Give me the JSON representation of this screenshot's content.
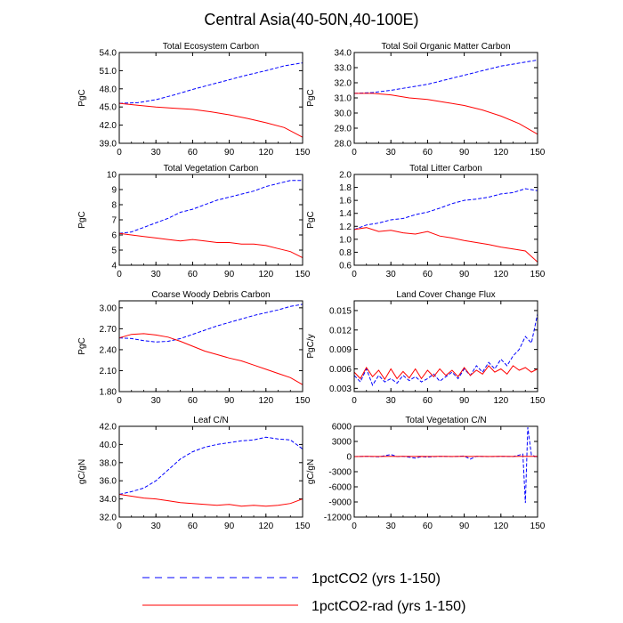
{
  "figure": {
    "title": "Central Asia(40-50N,40-100E)"
  },
  "legend": {
    "placement": "bottom",
    "entries": [
      {
        "label": "1pctCO2 (yrs 1-150)",
        "color": "#0000ff",
        "style": "dashed"
      },
      {
        "label": "1pctCO2-rad (yrs 1-150)",
        "color": "#ff0000",
        "style": "solid"
      }
    ]
  },
  "chart_data": [
    {
      "type": "line",
      "title": "Total Ecosystem Carbon",
      "ylabel": "PgC",
      "xlim": [
        0,
        150
      ],
      "ylim": [
        39,
        54
      ],
      "xticks": [
        0,
        30,
        60,
        90,
        120,
        150
      ],
      "xtick_labels": [
        "0",
        "30",
        "60",
        "90",
        "120",
        "150"
      ],
      "yticks": [
        39,
        42,
        45,
        48,
        51,
        54
      ],
      "ytick_labels": [
        "39.0",
        "42.0",
        "45.0",
        "48.0",
        "51.0",
        "54.0"
      ],
      "x": [
        0,
        15,
        30,
        45,
        60,
        75,
        90,
        105,
        120,
        135,
        150
      ],
      "series": [
        {
          "name": "1pctCO2 (yrs 1-150)",
          "color": "#0000ff",
          "style": "dashed",
          "values": [
            45.6,
            45.7,
            46.2,
            47.0,
            47.9,
            48.7,
            49.5,
            50.3,
            51.0,
            51.8,
            52.3
          ]
        },
        {
          "name": "1pctCO2-rad (yrs 1-150)",
          "color": "#ff0000",
          "style": "solid",
          "values": [
            45.6,
            45.3,
            45.0,
            44.8,
            44.6,
            44.2,
            43.7,
            43.1,
            42.4,
            41.6,
            40.0
          ]
        }
      ]
    },
    {
      "type": "line",
      "title": "Total Soil Organic Matter Carbon",
      "ylabel": "PgC",
      "xlim": [
        0,
        150
      ],
      "ylim": [
        28,
        34
      ],
      "xticks": [
        0,
        30,
        60,
        90,
        120,
        150
      ],
      "xtick_labels": [
        "0",
        "30",
        "60",
        "90",
        "120",
        "150"
      ],
      "yticks": [
        28,
        29,
        30,
        31,
        32,
        33,
        34
      ],
      "ytick_labels": [
        "28.0",
        "29.0",
        "30.0",
        "31.0",
        "32.0",
        "33.0",
        "34.0"
      ],
      "x": [
        0,
        15,
        30,
        45,
        60,
        75,
        90,
        105,
        120,
        135,
        150
      ],
      "series": [
        {
          "name": "1pctCO2 (yrs 1-150)",
          "color": "#0000ff",
          "style": "dashed",
          "values": [
            31.3,
            31.35,
            31.5,
            31.7,
            31.9,
            32.2,
            32.5,
            32.8,
            33.1,
            33.3,
            33.5
          ]
        },
        {
          "name": "1pctCO2-rad (yrs 1-150)",
          "color": "#ff0000",
          "style": "solid",
          "values": [
            31.3,
            31.3,
            31.2,
            31.0,
            30.9,
            30.7,
            30.5,
            30.2,
            29.8,
            29.3,
            28.6
          ]
        }
      ]
    },
    {
      "type": "line",
      "title": "Total Vegetation Carbon",
      "ylabel": "PgC",
      "xlim": [
        0,
        150
      ],
      "ylim": [
        4,
        10
      ],
      "xticks": [
        0,
        30,
        60,
        90,
        120,
        150
      ],
      "xtick_labels": [
        "0",
        "30",
        "60",
        "90",
        "120",
        "150"
      ],
      "yticks": [
        4,
        5,
        6,
        7,
        8,
        9,
        10
      ],
      "ytick_labels": [
        "4",
        "5",
        "6",
        "7",
        "8",
        "9",
        "10"
      ],
      "x": [
        0,
        10,
        20,
        30,
        40,
        50,
        60,
        70,
        80,
        90,
        100,
        110,
        120,
        130,
        140,
        150
      ],
      "series": [
        {
          "name": "1pctCO2 (yrs 1-150)",
          "color": "#0000ff",
          "style": "dashed",
          "values": [
            6.1,
            6.2,
            6.5,
            6.8,
            7.1,
            7.5,
            7.7,
            8.0,
            8.3,
            8.5,
            8.7,
            8.9,
            9.2,
            9.4,
            9.6,
            9.6
          ]
        },
        {
          "name": "1pctCO2-rad (yrs 1-150)",
          "color": "#ff0000",
          "style": "solid",
          "values": [
            6.1,
            6.0,
            5.9,
            5.8,
            5.7,
            5.6,
            5.7,
            5.6,
            5.5,
            5.5,
            5.4,
            5.4,
            5.3,
            5.1,
            4.9,
            4.5
          ]
        }
      ]
    },
    {
      "type": "line",
      "title": "Total Litter Carbon",
      "ylabel": "PgC",
      "xlim": [
        0,
        150
      ],
      "ylim": [
        0.6,
        2.0
      ],
      "xticks": [
        0,
        30,
        60,
        90,
        120,
        150
      ],
      "xtick_labels": [
        "0",
        "30",
        "60",
        "90",
        "120",
        "150"
      ],
      "yticks": [
        0.6,
        0.8,
        1.0,
        1.2,
        1.4,
        1.6,
        1.8,
        2.0
      ],
      "ytick_labels": [
        "0.6",
        "0.8",
        "1.0",
        "1.2",
        "1.4",
        "1.6",
        "1.8",
        "2.0"
      ],
      "x": [
        0,
        10,
        20,
        30,
        40,
        50,
        60,
        70,
        80,
        90,
        100,
        110,
        120,
        130,
        140,
        150
      ],
      "series": [
        {
          "name": "1pctCO2 (yrs 1-150)",
          "color": "#0000ff",
          "style": "dashed",
          "values": [
            1.15,
            1.22,
            1.25,
            1.3,
            1.32,
            1.38,
            1.42,
            1.48,
            1.55,
            1.6,
            1.62,
            1.65,
            1.7,
            1.72,
            1.78,
            1.75
          ]
        },
        {
          "name": "1pctCO2-rad (yrs 1-150)",
          "color": "#ff0000",
          "style": "solid",
          "values": [
            1.15,
            1.18,
            1.12,
            1.14,
            1.1,
            1.08,
            1.12,
            1.05,
            1.02,
            0.98,
            0.95,
            0.92,
            0.88,
            0.85,
            0.82,
            0.65
          ]
        }
      ]
    },
    {
      "type": "line",
      "title": "Coarse Woody Debris Carbon",
      "ylabel": "PgC",
      "xlim": [
        0,
        150
      ],
      "ylim": [
        1.8,
        3.1
      ],
      "xticks": [
        0,
        30,
        60,
        90,
        120,
        150
      ],
      "xtick_labels": [
        "0",
        "30",
        "60",
        "90",
        "120",
        "150"
      ],
      "yticks": [
        1.8,
        2.1,
        2.4,
        2.7,
        3.0
      ],
      "ytick_labels": [
        "1.80",
        "2.10",
        "2.40",
        "2.70",
        "3.00"
      ],
      "x": [
        0,
        10,
        20,
        30,
        40,
        50,
        60,
        70,
        80,
        90,
        100,
        110,
        120,
        130,
        140,
        150
      ],
      "series": [
        {
          "name": "1pctCO2 (yrs 1-150)",
          "color": "#0000ff",
          "style": "dashed",
          "values": [
            2.57,
            2.56,
            2.53,
            2.51,
            2.52,
            2.56,
            2.62,
            2.68,
            2.74,
            2.79,
            2.84,
            2.89,
            2.93,
            2.97,
            3.02,
            3.05
          ]
        },
        {
          "name": "1pctCO2-rad (yrs 1-150)",
          "color": "#ff0000",
          "style": "solid",
          "values": [
            2.57,
            2.62,
            2.63,
            2.61,
            2.58,
            2.52,
            2.45,
            2.38,
            2.33,
            2.28,
            2.24,
            2.18,
            2.12,
            2.06,
            2.0,
            1.9
          ]
        }
      ]
    },
    {
      "type": "line",
      "title": "Land Cover Change Flux",
      "ylabel": "PgC/y",
      "xlim": [
        0,
        150
      ],
      "ylim": [
        0.0025,
        0.0165
      ],
      "xticks": [
        0,
        30,
        60,
        90,
        120,
        150
      ],
      "xtick_labels": [
        "0",
        "30",
        "60",
        "90",
        "120",
        "150"
      ],
      "yticks": [
        0.003,
        0.006,
        0.009,
        0.012,
        0.015
      ],
      "ytick_labels": [
        "0.003",
        "0.006",
        "0.009",
        "0.012",
        "0.015"
      ],
      "x": [
        0,
        5,
        10,
        15,
        20,
        25,
        30,
        35,
        40,
        45,
        50,
        55,
        60,
        65,
        70,
        75,
        80,
        85,
        90,
        95,
        100,
        105,
        110,
        115,
        120,
        125,
        130,
        135,
        140,
        145,
        150
      ],
      "series": [
        {
          "name": "1pctCO2 (yrs 1-150)",
          "color": "#0000ff",
          "style": "dashed",
          "values": [
            0.005,
            0.004,
            0.006,
            0.0035,
            0.005,
            0.004,
            0.0045,
            0.0038,
            0.005,
            0.0042,
            0.0048,
            0.004,
            0.0045,
            0.0052,
            0.0041,
            0.0048,
            0.0055,
            0.0045,
            0.006,
            0.005,
            0.0065,
            0.0055,
            0.007,
            0.006,
            0.0075,
            0.0065,
            0.008,
            0.009,
            0.011,
            0.01,
            0.0145
          ]
        },
        {
          "name": "1pctCO2-rad (yrs 1-150)",
          "color": "#ff0000",
          "style": "solid",
          "values": [
            0.0055,
            0.0045,
            0.0062,
            0.0048,
            0.0058,
            0.0044,
            0.006,
            0.0045,
            0.0056,
            0.0046,
            0.006,
            0.0045,
            0.0058,
            0.0048,
            0.006,
            0.005,
            0.0058,
            0.0048,
            0.0062,
            0.005,
            0.0058,
            0.0052,
            0.0065,
            0.0055,
            0.006,
            0.0052,
            0.0065,
            0.0058,
            0.0062,
            0.0055,
            0.006
          ]
        }
      ]
    },
    {
      "type": "line",
      "title": "Leaf C/N",
      "ylabel": "gC/gN",
      "xlim": [
        0,
        150
      ],
      "ylim": [
        32,
        42
      ],
      "xticks": [
        0,
        30,
        60,
        90,
        120,
        150
      ],
      "xtick_labels": [
        "0",
        "30",
        "60",
        "90",
        "120",
        "150"
      ],
      "yticks": [
        32,
        34,
        36,
        38,
        40,
        42
      ],
      "ytick_labels": [
        "32.0",
        "34.0",
        "36.0",
        "38.0",
        "40.0",
        "42.0"
      ],
      "x": [
        0,
        10,
        20,
        30,
        40,
        50,
        60,
        70,
        80,
        90,
        100,
        110,
        120,
        130,
        140,
        150
      ],
      "series": [
        {
          "name": "1pctCO2 (yrs 1-150)",
          "color": "#0000ff",
          "style": "dashed",
          "values": [
            34.5,
            34.8,
            35.2,
            36.0,
            37.2,
            38.4,
            39.2,
            39.7,
            40.0,
            40.2,
            40.4,
            40.5,
            40.8,
            40.6,
            40.5,
            39.5
          ]
        },
        {
          "name": "1pctCO2-rad (yrs 1-150)",
          "color": "#ff0000",
          "style": "solid",
          "values": [
            34.5,
            34.3,
            34.1,
            34.0,
            33.8,
            33.6,
            33.5,
            33.4,
            33.3,
            33.4,
            33.2,
            33.3,
            33.2,
            33.3,
            33.5,
            34.0
          ]
        }
      ]
    },
    {
      "type": "line",
      "title": "Total Vegetation C/N",
      "ylabel": "gC/gN",
      "xlim": [
        0,
        150
      ],
      "ylim": [
        -12000,
        6000
      ],
      "xticks": [
        0,
        30,
        60,
        90,
        120,
        150
      ],
      "xtick_labels": [
        "0",
        "30",
        "60",
        "90",
        "120",
        "150"
      ],
      "yticks": [
        -12000,
        -9000,
        -6000,
        -3000,
        0,
        3000,
        6000
      ],
      "ytick_labels": [
        "-12000",
        "-9000",
        "-6000",
        "-3000",
        "0",
        "3000",
        "6000"
      ],
      "x": [
        0,
        10,
        20,
        30,
        35,
        40,
        50,
        55,
        60,
        70,
        80,
        90,
        95,
        100,
        110,
        120,
        130,
        135,
        138,
        140,
        142,
        145,
        148,
        150
      ],
      "series": [
        {
          "name": "1pctCO2 (yrs 1-150)",
          "color": "#0000ff",
          "style": "dashed",
          "values": [
            0,
            50,
            -50,
            400,
            0,
            50,
            -300,
            0,
            -100,
            50,
            0,
            100,
            -500,
            50,
            0,
            50,
            0,
            300,
            500,
            -9200,
            5800,
            300,
            50,
            0
          ]
        },
        {
          "name": "1pctCO2-rad (yrs 1-150)",
          "color": "#ff0000",
          "style": "solid",
          "values": [
            0,
            30,
            20,
            40,
            20,
            30,
            20,
            30,
            20,
            30,
            20,
            30,
            20,
            30,
            20,
            30,
            20,
            30,
            30,
            40,
            30,
            40,
            30,
            30
          ]
        }
      ]
    }
  ]
}
